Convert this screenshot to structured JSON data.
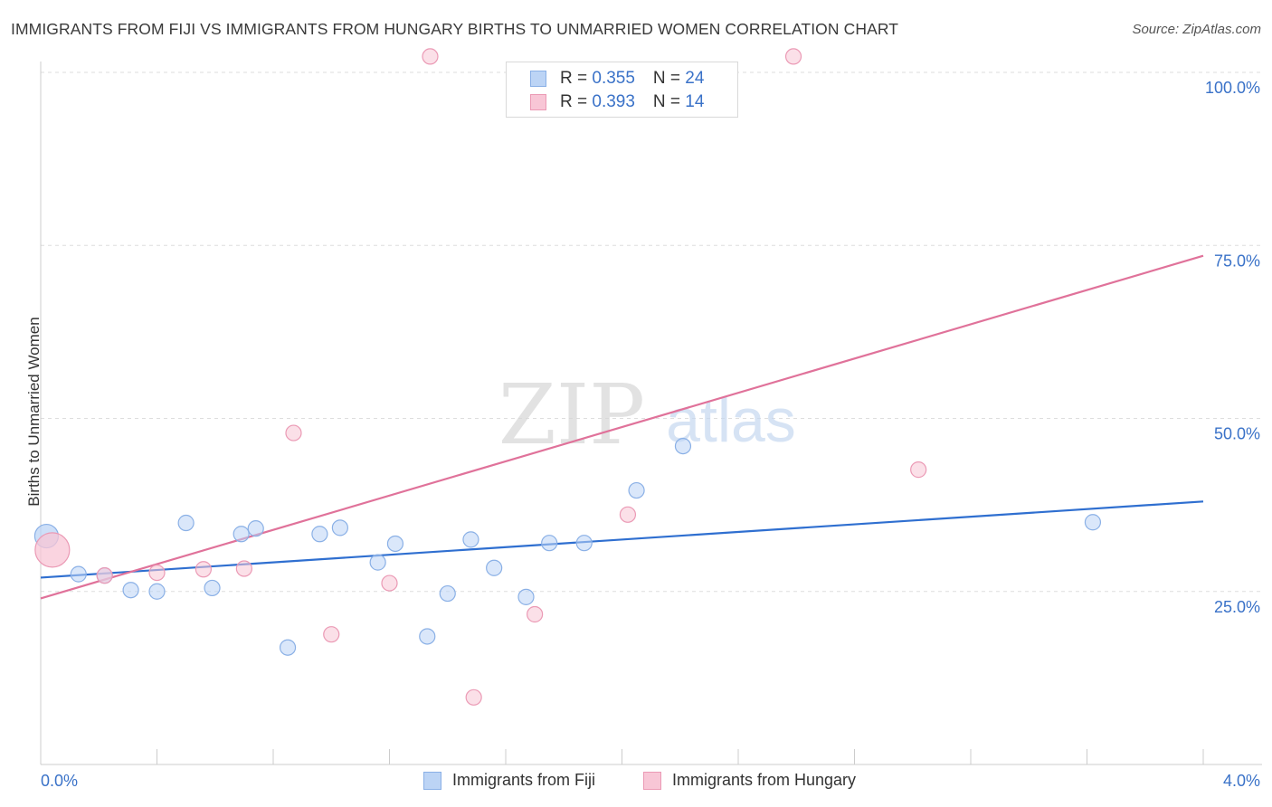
{
  "title": "IMMIGRANTS FROM FIJI VS IMMIGRANTS FROM HUNGARY BIRTHS TO UNMARRIED WOMEN CORRELATION CHART",
  "source": "Source: ZipAtlas.com",
  "watermark": {
    "zip": "ZIP",
    "atlas": "atlas"
  },
  "legend_top": [
    {
      "r_label": "R = ",
      "r_value": "0.355",
      "n_label": "N = ",
      "n_value": "24"
    },
    {
      "r_label": "R = ",
      "r_value": "0.393",
      "n_label": "N = ",
      "n_value": "14"
    }
  ],
  "colors": {
    "fiji_fill": "#bcd4f5",
    "fiji_stroke": "#8ab0e6",
    "fiji_line": "#2f6fd0",
    "hungary_fill": "#f8c6d6",
    "hungary_stroke": "#eb9ab5",
    "hungary_line": "#e0729a",
    "tick_label": "#3a72c8",
    "grid": "#dddddd"
  },
  "chart_data": {
    "type": "scatter",
    "title": "IMMIGRANTS FROM FIJI VS IMMIGRANTS FROM HUNGARY BIRTHS TO UNMARRIED WOMEN CORRELATION CHART",
    "xlabel": "",
    "ylabel": "Births to Unmarried Women",
    "xlim": [
      0,
      4
    ],
    "ylim": [
      0,
      105
    ],
    "x_tick_labels": [
      "0.0%",
      "4.0%"
    ],
    "y_ticks": [
      25,
      50,
      75,
      100
    ],
    "y_tick_labels": [
      "25.0%",
      "50.0%",
      "75.0%",
      "100.0%"
    ],
    "grid": true,
    "legend_position": "top-center",
    "series": [
      {
        "name": "Immigrants from Fiji",
        "points": [
          {
            "x": 0.02,
            "y": 33.0,
            "big": true
          },
          {
            "x": 0.13,
            "y": 27.5
          },
          {
            "x": 0.22,
            "y": 27.3
          },
          {
            "x": 0.31,
            "y": 25.2
          },
          {
            "x": 0.4,
            "y": 25.0
          },
          {
            "x": 0.5,
            "y": 34.9
          },
          {
            "x": 0.59,
            "y": 25.5
          },
          {
            "x": 0.69,
            "y": 33.3
          },
          {
            "x": 0.74,
            "y": 34.1
          },
          {
            "x": 0.85,
            "y": 16.9
          },
          {
            "x": 0.96,
            "y": 33.3
          },
          {
            "x": 1.03,
            "y": 34.2
          },
          {
            "x": 1.16,
            "y": 29.2
          },
          {
            "x": 1.22,
            "y": 31.9
          },
          {
            "x": 1.33,
            "y": 18.5
          },
          {
            "x": 1.4,
            "y": 24.7
          },
          {
            "x": 1.48,
            "y": 32.5
          },
          {
            "x": 1.56,
            "y": 28.4
          },
          {
            "x": 1.67,
            "y": 24.2
          },
          {
            "x": 1.75,
            "y": 32.0
          },
          {
            "x": 1.87,
            "y": 32.0
          },
          {
            "x": 2.05,
            "y": 39.6
          },
          {
            "x": 2.21,
            "y": 46.0
          },
          {
            "x": 3.62,
            "y": 35.0
          }
        ],
        "trend": {
          "x0": 0,
          "y0": 27.0,
          "x1": 4,
          "y1": 38.0
        }
      },
      {
        "name": "Immigrants from Hungary",
        "points": [
          {
            "x": 0.04,
            "y": 31.0,
            "big": true
          },
          {
            "x": 0.22,
            "y": 27.3
          },
          {
            "x": 0.4,
            "y": 27.7
          },
          {
            "x": 0.56,
            "y": 28.2
          },
          {
            "x": 0.7,
            "y": 28.3
          },
          {
            "x": 0.87,
            "y": 47.9
          },
          {
            "x": 1.0,
            "y": 18.8
          },
          {
            "x": 1.2,
            "y": 26.2
          },
          {
            "x": 1.34,
            "y": 102.3
          },
          {
            "x": 1.49,
            "y": 9.7
          },
          {
            "x": 1.7,
            "y": 21.7
          },
          {
            "x": 2.02,
            "y": 36.1
          },
          {
            "x": 2.59,
            "y": 102.3
          },
          {
            "x": 3.02,
            "y": 42.6
          }
        ],
        "trend": {
          "x0": 0,
          "y0": 24.0,
          "x1": 4,
          "y1": 73.5
        }
      }
    ]
  }
}
